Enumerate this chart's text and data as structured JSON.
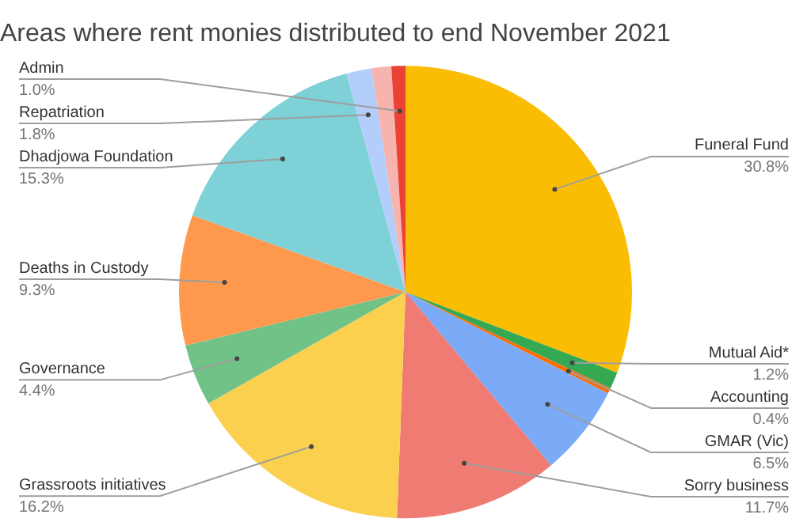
{
  "chart_data": {
    "type": "pie",
    "title": "Areas where rent monies distributed to end November 2021",
    "categories": [
      "Funeral Fund",
      "Mutual Aid*",
      "Accounting",
      "GMAR (Vic)",
      "Sorry business",
      "Grassroots initiatives",
      "Governance",
      "Deaths in Custody",
      "Dhadjowa Foundation",
      "Repatriation",
      null,
      "Admin"
    ],
    "values": [
      30.8,
      1.2,
      0.4,
      6.5,
      11.7,
      16.2,
      4.4,
      9.3,
      15.3,
      1.8,
      1.4,
      1.0
    ],
    "colors": [
      "#fbbc04",
      "#34a853",
      "#ff6d01",
      "#7baaf7",
      "#f07b72",
      "#fcd04f",
      "#71c287",
      "#ff994d",
      "#7ed1d7",
      "#b3cefb",
      "#f7b4ae",
      "#ea4335"
    ],
    "value_labels": [
      "30.8%",
      "1.2%",
      "0.4%",
      "6.5%",
      "11.7%",
      "16.2%",
      "4.4%",
      "9.3%",
      "15.3%",
      "1.8%",
      null,
      "1.0%"
    ],
    "legend": false
  }
}
